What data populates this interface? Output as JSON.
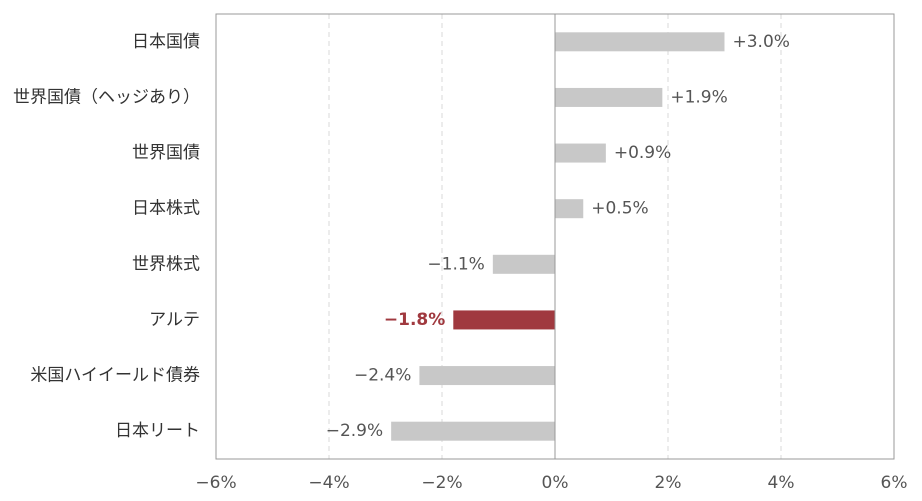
{
  "chart_data": {
    "type": "bar",
    "orientation": "horizontal",
    "categories": [
      "日本国債",
      "世界国債（ヘッジあり）",
      "世界国債",
      "日本株式",
      "世界株式",
      "アルテ",
      "米国ハイイールド債券",
      "日本リート"
    ],
    "values": [
      3.0,
      1.9,
      0.9,
      0.5,
      -1.1,
      -1.8,
      -2.4,
      -2.9
    ],
    "value_labels": [
      "+3.0%",
      "+1.9%",
      "+0.9%",
      "+0.5%",
      "−1.1%",
      "−1.8%",
      "−2.4%",
      "−2.9%"
    ],
    "highlight_index": 5,
    "xlim": [
      -6,
      6
    ],
    "x_ticks": [
      -6,
      -4,
      -2,
      0,
      2,
      4,
      6
    ],
    "x_tick_labels": [
      "−6%",
      "−4%",
      "−2%",
      "0%",
      "2%",
      "4%",
      "6%"
    ],
    "grid": "vertical dashed",
    "colors": {
      "bar": "#c8c8c8",
      "highlight": "#a0393f",
      "grid": "#d9d9d9",
      "axis": "#999999"
    },
    "title": "",
    "xlabel": "",
    "ylabel": ""
  }
}
